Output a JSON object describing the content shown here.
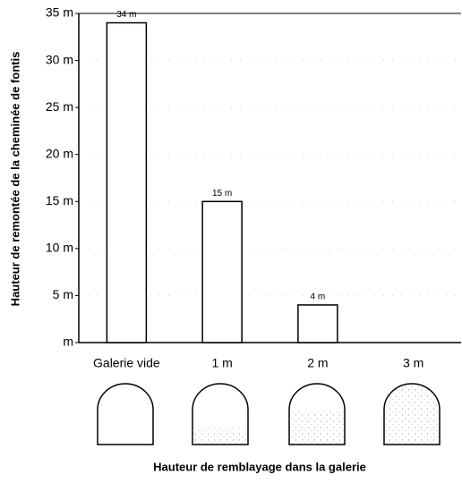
{
  "chart_data": {
    "type": "bar",
    "y_axis_label": "Hauteur de remontée de la cheminée de fontis",
    "x_axis_label": "Hauteur de remblayage dans la galerie",
    "categories": [
      "Galerie vide",
      "1 m",
      "2 m",
      "3 m"
    ],
    "values": [
      34,
      15,
      4,
      0
    ],
    "value_labels": [
      "34 m",
      "15 m",
      "4 m",
      null
    ],
    "color": "#ffffff",
    "ylim": [
      0,
      35
    ],
    "yticks": [
      {
        "value": 0,
        "label": "m"
      },
      {
        "value": 5,
        "label": "5 m"
      },
      {
        "value": 10,
        "label": "10 m"
      },
      {
        "value": 15,
        "label": "15 m"
      },
      {
        "value": 20,
        "label": "20 m"
      },
      {
        "value": 25,
        "label": "25 m"
      },
      {
        "value": 30,
        "label": "30 m"
      },
      {
        "value": 35,
        "label": "35 m"
      }
    ],
    "grid": true
  }
}
